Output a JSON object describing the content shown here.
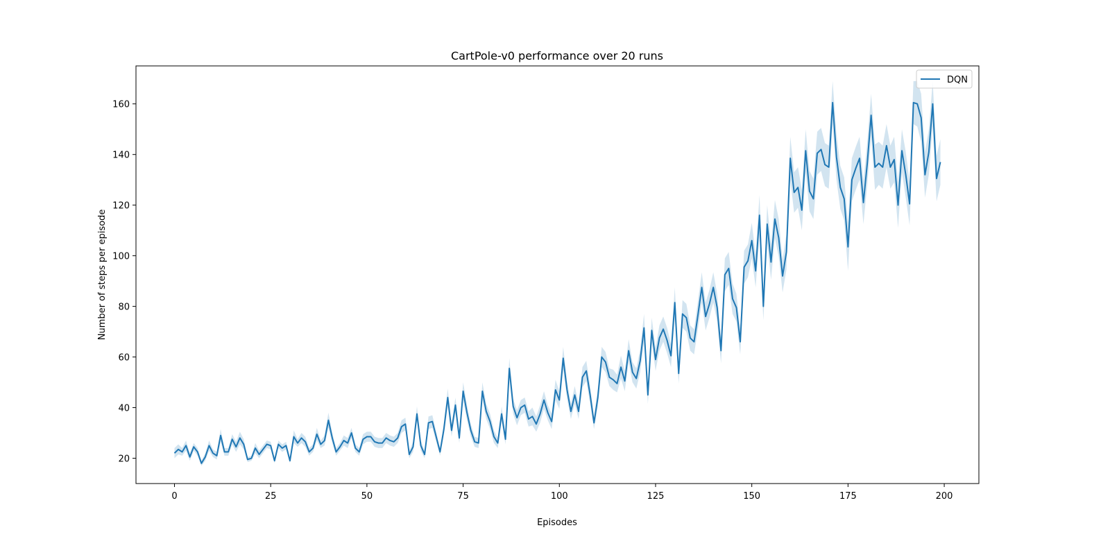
{
  "chart_data": {
    "type": "line",
    "title": "CartPole-v0 performance over 20 runs",
    "xlabel": "Episodes",
    "ylabel": "Number of steps per episode",
    "xlim": [
      -10,
      209
    ],
    "ylim": [
      10,
      175
    ],
    "xticks": [
      0,
      25,
      50,
      75,
      100,
      125,
      150,
      175,
      200
    ],
    "yticks": [
      20,
      40,
      60,
      80,
      100,
      120,
      140,
      160
    ],
    "grid": false,
    "legend": {
      "position": "top-right",
      "entries": [
        "DQN"
      ]
    },
    "series": [
      {
        "name": "DQN",
        "color": "#1f77b4",
        "band_color": "#1f77b4",
        "x": [
          0,
          1,
          2,
          3,
          4,
          5,
          6,
          7,
          8,
          9,
          10,
          11,
          12,
          13,
          14,
          15,
          16,
          17,
          18,
          19,
          20,
          21,
          22,
          23,
          24,
          25,
          26,
          27,
          28,
          29,
          30,
          31,
          32,
          33,
          34,
          35,
          36,
          37,
          38,
          39,
          40,
          41,
          42,
          43,
          44,
          45,
          46,
          47,
          48,
          49,
          50,
          51,
          52,
          53,
          54,
          55,
          56,
          57,
          58,
          59,
          60,
          61,
          62,
          63,
          64,
          65,
          66,
          67,
          68,
          69,
          70,
          71,
          72,
          73,
          74,
          75,
          76,
          77,
          78,
          79,
          80,
          81,
          82,
          83,
          84,
          85,
          86,
          87,
          88,
          89,
          90,
          91,
          92,
          93,
          94,
          95,
          96,
          97,
          98,
          99,
          100,
          101,
          102,
          103,
          104,
          105,
          106,
          107,
          108,
          109,
          110,
          111,
          112,
          113,
          114,
          115,
          116,
          117,
          118,
          119,
          120,
          121,
          122,
          123,
          124,
          125,
          126,
          127,
          128,
          129,
          130,
          131,
          132,
          133,
          134,
          135,
          136,
          137,
          138,
          139,
          140,
          141,
          142,
          143,
          144,
          145,
          146,
          147,
          148,
          149,
          150,
          151,
          152,
          153,
          154,
          155,
          156,
          157,
          158,
          159,
          160,
          161,
          162,
          163,
          164,
          165,
          166,
          167,
          168,
          169,
          170,
          171,
          172,
          173,
          174,
          175,
          176,
          177,
          178,
          179,
          180,
          181,
          182,
          183,
          184,
          185,
          186,
          187,
          188,
          189,
          190,
          191,
          192,
          193,
          194,
          195,
          196,
          197,
          198,
          199
        ],
        "y": [
          22,
          23.5,
          22.5,
          25,
          20.5,
          24.5,
          22.5,
          18,
          20.5,
          25,
          22,
          21,
          29,
          22.5,
          22.5,
          27.5,
          24.5,
          28,
          25.5,
          19.5,
          20,
          24,
          21.5,
          23.5,
          25.5,
          25,
          19,
          25.5,
          24,
          25,
          19,
          28.5,
          26,
          28,
          26.5,
          22.5,
          24,
          29.5,
          25.5,
          27,
          35,
          28,
          22.5,
          24.5,
          27,
          26,
          30,
          24,
          22.5,
          27.5,
          28.5,
          28.5,
          26.5,
          26,
          26,
          28,
          27,
          26.5,
          28,
          32.5,
          33.5,
          21.5,
          24.5,
          37.5,
          25,
          21.5,
          34,
          34.5,
          28.5,
          22.5,
          31.5,
          44,
          31,
          41,
          28,
          46.5,
          38,
          31,
          26.5,
          26,
          46.5,
          38.5,
          34.5,
          28.5,
          26,
          37.5,
          27.5,
          55.5,
          40.5,
          36,
          40,
          41,
          35.5,
          36.5,
          33.5,
          37.5,
          43,
          38,
          34.5,
          47,
          43,
          59.5,
          47,
          38.5,
          45,
          38.5,
          52,
          54.5,
          45,
          34,
          44,
          60,
          58,
          52,
          51,
          49.5,
          56,
          50.5,
          62.5,
          54,
          51.5,
          58.5,
          71.5,
          45,
          70.5,
          59,
          67.5,
          71,
          66.5,
          60.5,
          81.5,
          53.5,
          77,
          75.5,
          67.5,
          66,
          76.5,
          87.5,
          76,
          81,
          87.5,
          79.5,
          62.5,
          92.5,
          95,
          83,
          79.5,
          66,
          95.5,
          98,
          106,
          94,
          116,
          80,
          112.5,
          97.5,
          114.5,
          107,
          92,
          101.5,
          138.5,
          125,
          127,
          118,
          141.5,
          125.5,
          122.5,
          140.5,
          142,
          136,
          135,
          160.5,
          139,
          127,
          122.5,
          103.5,
          130,
          134.5,
          138.5,
          121,
          136.5,
          155.5,
          135,
          136.5,
          135,
          143.5,
          135,
          138,
          120,
          141.5,
          132,
          120.5,
          160.5,
          160,
          154.5,
          132,
          141,
          160,
          130.5,
          137
        ],
        "ci_lower": [
          20,
          21.5,
          21,
          23,
          19,
          23,
          21,
          17,
          19,
          23,
          20.5,
          19.5,
          26.5,
          21,
          21,
          25.5,
          22.5,
          25.5,
          23.5,
          18.5,
          19,
          22,
          20,
          22,
          24,
          23.5,
          18,
          24,
          22.5,
          23.5,
          18,
          26,
          24.5,
          26,
          24.5,
          21,
          22.5,
          27,
          24,
          25,
          32,
          26,
          21,
          23,
          25,
          24,
          28,
          22.5,
          21,
          25.5,
          26.5,
          26.5,
          24.5,
          24,
          24,
          26,
          25,
          24.5,
          26,
          30,
          31,
          20,
          22.5,
          34.5,
          23,
          20,
          31.5,
          32,
          26.5,
          21,
          29,
          40.5,
          28.5,
          38,
          26,
          43,
          35,
          28.5,
          24.5,
          24,
          43,
          35.5,
          31.5,
          26,
          24,
          34.5,
          25.5,
          51.5,
          37.5,
          33,
          37,
          38,
          32.5,
          33,
          30.5,
          34,
          39.5,
          35,
          31.5,
          43,
          39.5,
          55,
          43.5,
          35.5,
          41.5,
          35.5,
          48,
          50.5,
          41.5,
          31.5,
          40.5,
          56,
          54,
          48.5,
          47,
          46,
          51.5,
          46.5,
          58,
          50,
          47.5,
          54,
          66,
          41.5,
          65.5,
          54.5,
          62.5,
          66,
          61.5,
          56,
          75.5,
          49.5,
          71.5,
          70,
          62.5,
          61,
          71,
          81.5,
          70.5,
          75.5,
          81.5,
          74,
          57.5,
          86,
          88.5,
          77,
          74,
          61,
          89,
          91.5,
          99,
          87.5,
          108,
          74.5,
          105,
          90.5,
          107,
          99.5,
          85.5,
          94.5,
          130,
          117,
          119,
          110,
          133,
          117.5,
          114.5,
          132,
          133.5,
          127.5,
          126.5,
          152,
          130,
          118.5,
          114,
          94,
          121.5,
          126,
          130,
          112.5,
          128,
          147,
          126,
          128,
          126.5,
          135,
          126.5,
          129,
          111,
          133,
          123,
          112,
          152,
          151,
          145,
          123,
          132,
          151,
          121.5,
          128
        ],
        "ci_upper": [
          24,
          25.5,
          24,
          27,
          22,
          26,
          24,
          19,
          22,
          27,
          23.5,
          22.5,
          31.5,
          24,
          24,
          29.5,
          26.5,
          30.5,
          27.5,
          20.5,
          21,
          26,
          23,
          25,
          27,
          26.5,
          20,
          27,
          25.5,
          26.5,
          20,
          31,
          27.5,
          30,
          28.5,
          24,
          25.5,
          32,
          27,
          29,
          38,
          30,
          24,
          26,
          29,
          28,
          32,
          25.5,
          24,
          29.5,
          30.5,
          30.5,
          28.5,
          28,
          28,
          30,
          29,
          28.5,
          30,
          35,
          36,
          23,
          26.5,
          40.5,
          27,
          23,
          36.5,
          37,
          30.5,
          24,
          34,
          47.5,
          33.5,
          44,
          30,
          50,
          41,
          33.5,
          28.5,
          28,
          50,
          41.5,
          37.5,
          31,
          28,
          40.5,
          29.5,
          59.5,
          43.5,
          39,
          43,
          44,
          38.5,
          40,
          36.5,
          41,
          46.5,
          41,
          37.5,
          51,
          46.5,
          64,
          50.5,
          41.5,
          48.5,
          41.5,
          56,
          58.5,
          48.5,
          36.5,
          47.5,
          64,
          62,
          55.5,
          55,
          53,
          60.5,
          54.5,
          67,
          58,
          55.5,
          63,
          77,
          48.5,
          75.5,
          63.5,
          72.5,
          76,
          71.5,
          65,
          87.5,
          57.5,
          82.5,
          81,
          72.5,
          71,
          82,
          93.5,
          81.5,
          86.5,
          93.5,
          85,
          67.5,
          99,
          101.5,
          89,
          85,
          71,
          102,
          104.5,
          113,
          100.5,
          124,
          85.5,
          120,
          104.5,
          122,
          114.5,
          98.5,
          108.5,
          147,
          133,
          135,
          126,
          150,
          133.5,
          130.5,
          149,
          150.5,
          144.5,
          143.5,
          169,
          148,
          135.5,
          131,
          113,
          138.5,
          143,
          147,
          129.5,
          145,
          164,
          144,
          145,
          143.5,
          152,
          143.5,
          147,
          129,
          150,
          141,
          129,
          169,
          169,
          164,
          141,
          150,
          169,
          139.5,
          146
        ]
      }
    ]
  }
}
